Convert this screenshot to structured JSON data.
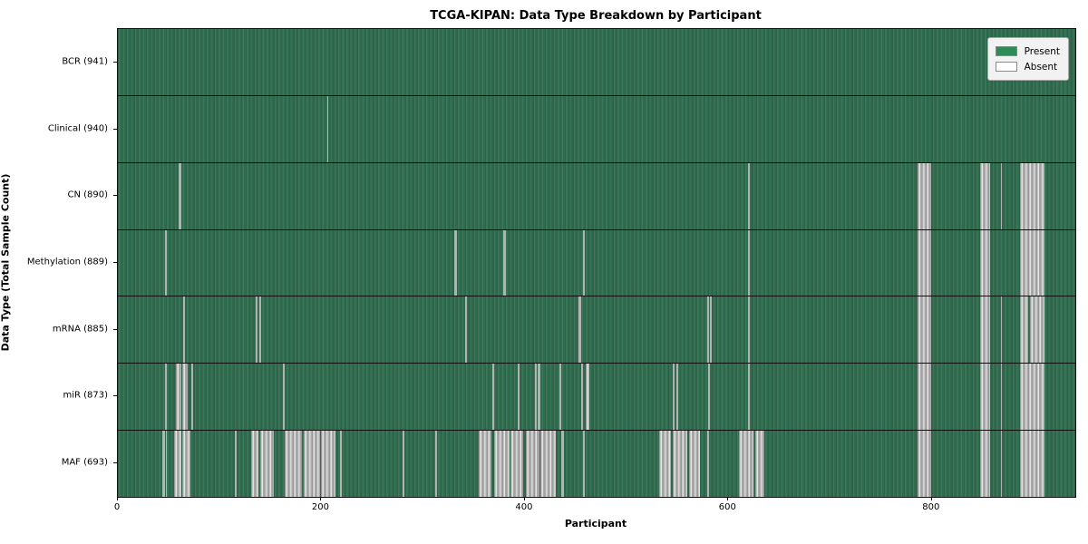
{
  "chart_data": {
    "type": "heatmap",
    "title": "TCGA-KIPAN: Data Type Breakdown by Participant",
    "xlabel": "Participant",
    "ylabel": "Data Type (Total Sample Count)",
    "x_ticks": [
      0,
      200,
      400,
      600,
      800
    ],
    "x_max": 941,
    "grid": false,
    "legend_position": "upper right",
    "legend": [
      {
        "label": "Present",
        "color": "#2e8b57"
      },
      {
        "label": "Absent",
        "color": "#ffffff"
      }
    ],
    "colors": {
      "present_fill": "#2e6b4b",
      "absent_fill": "#b5b5b5",
      "frame": "#111111"
    },
    "rows": [
      {
        "label": "BCR (941)",
        "total": 941,
        "absent_ranges": []
      },
      {
        "label": "Clinical (940)",
        "total": 940,
        "absent_ranges": [
          [
            206,
            207
          ]
        ]
      },
      {
        "label": "CN (890)",
        "total": 890,
        "absent_ranges": [
          [
            60,
            62
          ],
          [
            619,
            621
          ],
          [
            786,
            799
          ],
          [
            847,
            857
          ],
          [
            868,
            869
          ],
          [
            887,
            911
          ]
        ]
      },
      {
        "label": "Methylation (889)",
        "total": 889,
        "absent_ranges": [
          [
            46,
            48
          ],
          [
            331,
            333
          ],
          [
            379,
            381
          ],
          [
            457,
            459
          ],
          [
            619,
            621
          ],
          [
            786,
            799
          ],
          [
            847,
            857
          ],
          [
            887,
            911
          ]
        ]
      },
      {
        "label": "mRNA (885)",
        "total": 885,
        "absent_ranges": [
          [
            64,
            66
          ],
          [
            135,
            137
          ],
          [
            139,
            141
          ],
          [
            341,
            343
          ],
          [
            453,
            455
          ],
          [
            579,
            581
          ],
          [
            582,
            584
          ],
          [
            619,
            621
          ],
          [
            786,
            799
          ],
          [
            847,
            857
          ],
          [
            868,
            869
          ],
          [
            887,
            895
          ],
          [
            896,
            911
          ]
        ]
      },
      {
        "label": "miR (873)",
        "total": 873,
        "absent_ranges": [
          [
            46,
            48
          ],
          [
            57,
            62
          ],
          [
            63,
            69
          ],
          [
            72,
            74
          ],
          [
            162,
            164
          ],
          [
            368,
            370
          ],
          [
            393,
            395
          ],
          [
            410,
            412
          ],
          [
            413,
            415
          ],
          [
            434,
            436
          ],
          [
            455,
            457
          ],
          [
            460,
            463
          ],
          [
            545,
            547
          ],
          [
            549,
            551
          ],
          [
            580,
            582
          ],
          [
            619,
            621
          ],
          [
            786,
            799
          ],
          [
            847,
            857
          ],
          [
            868,
            869
          ],
          [
            887,
            911
          ]
        ]
      },
      {
        "label": "MAF (693)",
        "total": 693,
        "absent_ranges": [
          [
            44,
            46
          ],
          [
            47,
            48
          ],
          [
            55,
            62
          ],
          [
            63,
            71
          ],
          [
            115,
            117
          ],
          [
            131,
            138
          ],
          [
            140,
            153
          ],
          [
            164,
            181
          ],
          [
            183,
            199
          ],
          [
            200,
            214
          ],
          [
            218,
            220
          ],
          [
            280,
            282
          ],
          [
            312,
            314
          ],
          [
            355,
            367
          ],
          [
            370,
            385
          ],
          [
            386,
            398
          ],
          [
            401,
            414
          ],
          [
            415,
            430
          ],
          [
            436,
            438
          ],
          [
            457,
            459
          ],
          [
            532,
            544
          ],
          [
            545,
            560
          ],
          [
            561,
            572
          ],
          [
            579,
            581
          ],
          [
            610,
            625
          ],
          [
            626,
            635
          ],
          [
            786,
            799
          ],
          [
            847,
            857
          ],
          [
            868,
            869
          ],
          [
            887,
            911
          ]
        ]
      }
    ]
  }
}
